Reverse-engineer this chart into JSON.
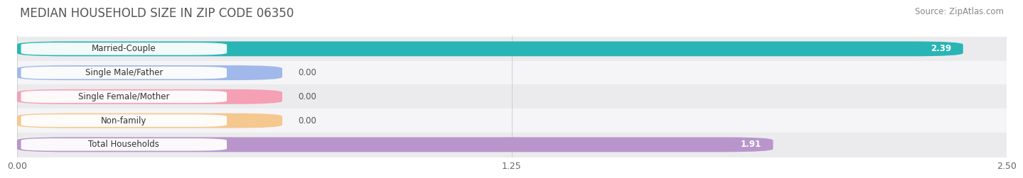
{
  "title": "MEDIAN HOUSEHOLD SIZE IN ZIP CODE 06350",
  "source": "Source: ZipAtlas.com",
  "categories": [
    "Married-Couple",
    "Single Male/Father",
    "Single Female/Mother",
    "Non-family",
    "Total Households"
  ],
  "values": [
    2.39,
    0.0,
    0.0,
    0.0,
    1.91
  ],
  "bar_colors": [
    "#29b5b5",
    "#a0b8ea",
    "#f5a0b5",
    "#f5c890",
    "#b896cc"
  ],
  "zero_bar_width": 0.55,
  "xlim": [
    0,
    2.5
  ],
  "xticks": [
    0.0,
    1.25,
    2.5
  ],
  "xtick_labels": [
    "0.00",
    "1.25",
    "2.50"
  ],
  "title_fontsize": 12,
  "source_fontsize": 8.5,
  "label_fontsize": 8.5,
  "value_fontsize": 8.5,
  "background_color": "#ffffff",
  "grid_color": "#cccccc",
  "row_bg_even": "#ebebed",
  "row_bg_odd": "#f5f5f7"
}
